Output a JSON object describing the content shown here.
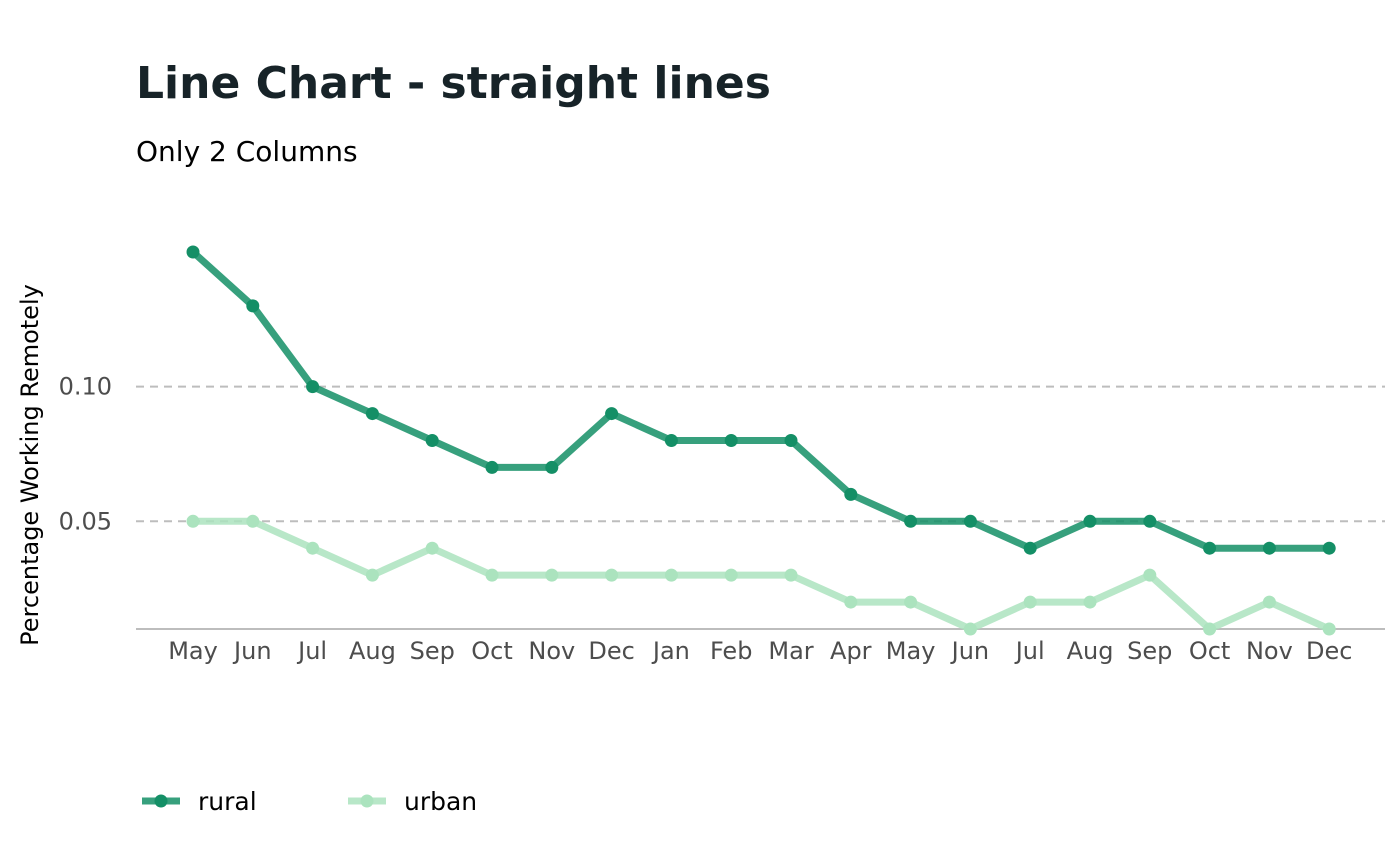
{
  "chart_data": {
    "type": "line",
    "title": "Line Chart - straight lines",
    "subtitle": "Only 2 Columns",
    "xlabel": "",
    "ylabel": "Percentage Working Remotely",
    "categories": [
      "May",
      "Jun",
      "Jul",
      "Aug",
      "Sep",
      "Oct",
      "Nov",
      "Dec",
      "Jan",
      "Feb",
      "Mar",
      "Apr",
      "May",
      "Jun",
      "Jul",
      "Aug",
      "Sep",
      "Oct",
      "Nov",
      "Dec"
    ],
    "series": [
      {
        "name": "rural",
        "color": "#148f66",
        "values": [
          0.15,
          0.13,
          0.1,
          0.09,
          0.08,
          0.07,
          0.07,
          0.09,
          0.08,
          0.08,
          0.08,
          0.06,
          0.05,
          0.05,
          0.04,
          0.05,
          0.05,
          0.04,
          0.04,
          0.04
        ]
      },
      {
        "name": "urban",
        "color": "#abe3be",
        "values": [
          0.05,
          0.05,
          0.04,
          0.03,
          0.04,
          0.03,
          0.03,
          0.03,
          0.03,
          0.03,
          0.03,
          0.02,
          0.02,
          0.01,
          0.02,
          0.02,
          0.03,
          0.01,
          0.02,
          0.01
        ]
      }
    ],
    "yticks": [
      0.05,
      0.1
    ],
    "ytick_labels": [
      "0.05",
      "0.10"
    ],
    "ylim": [
      0.01,
      0.15
    ],
    "grid": "horizontal dashed",
    "legend_position": "bottom-left"
  }
}
